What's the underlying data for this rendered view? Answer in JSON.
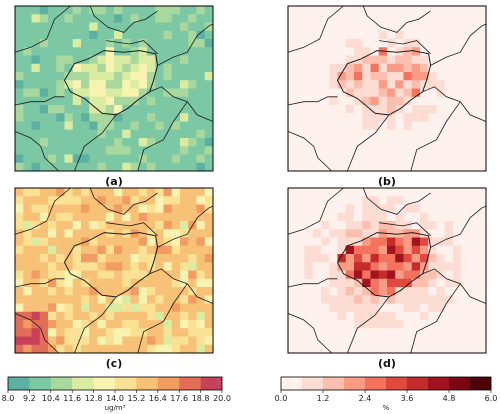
{
  "panels": [
    {
      "id": "a",
      "label": "(a)",
      "palette": "concentration"
    },
    {
      "id": "b",
      "label": "(b)",
      "palette": "percent"
    },
    {
      "id": "c",
      "label": "(c)",
      "palette": "concentration"
    },
    {
      "id": "d",
      "label": "(d)",
      "palette": "percent"
    }
  ],
  "colorbar_concentration": {
    "unit": "ug/m³",
    "ticks": [
      "8.0",
      "9.2",
      "10.4",
      "11.6",
      "12.8",
      "14.0",
      "15.2",
      "16.4",
      "17.6",
      "18.8",
      "20.0"
    ],
    "colors": [
      "#5db1a0",
      "#7dc8a4",
      "#a8d89e",
      "#d9eca1",
      "#f8f3b0",
      "#fbe193",
      "#f7c177",
      "#f29c62",
      "#e26e57",
      "#c8405a"
    ]
  },
  "colorbar_percent": {
    "unit": "%",
    "ticks": [
      "0.0",
      "1.2",
      "2.4",
      "3.6",
      "4.8",
      "6.0"
    ],
    "colors": [
      "#fff1ee",
      "#fddcd3",
      "#fcbfae",
      "#f99c86",
      "#f3735e",
      "#e04a3e",
      "#c62b2b",
      "#a3131f",
      "#7a0712",
      "#4e0309"
    ]
  },
  "colors": {
    "border": "#1a1a1a",
    "map_edge": "#000000"
  }
}
